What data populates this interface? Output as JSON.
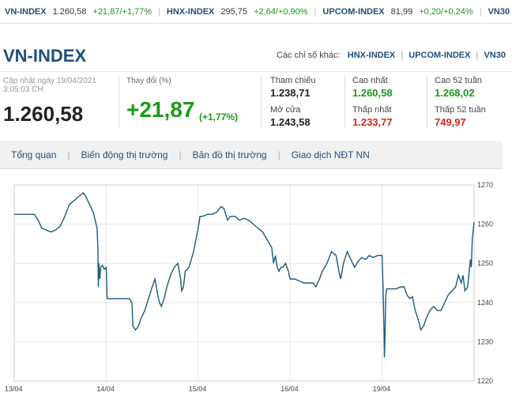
{
  "ticker": [
    {
      "symbol": "VN-INDEX",
      "value": "1.260,58",
      "change": "+21,87/+1,77%"
    },
    {
      "symbol": "HNX-INDEX",
      "value": "295,75",
      "change": "+2,64/+0,90%"
    },
    {
      "symbol": "UPCOM-INDEX",
      "value": "81,99",
      "change": "+0,20/+0,24%"
    },
    {
      "symbol": "VN30",
      "value": "",
      "change": ""
    }
  ],
  "header": {
    "title": "VN-INDEX",
    "other_label": "Các chỉ số khác:",
    "links": [
      "HNX-INDEX",
      "UPCOM-INDEX",
      "VN30"
    ]
  },
  "stats": {
    "updated_line1": "Cập nhật ngày 19/04/2021",
    "updated_line2": "3:05:03 CH",
    "price": "1.260,58",
    "change_label": "Thay đổi (%)",
    "change_value": "+21,87",
    "change_pct": "(+1,77%)",
    "ref_label": "Tham chiếu",
    "ref_value": "1.238,71",
    "open_label": "Mở cửa",
    "open_value": "1.243,58",
    "high_label": "Cao nhất",
    "high_value": "1.260,58",
    "low_label": "Thấp nhất",
    "low_value": "1.233,77",
    "high52_label": "Cao 52 tuần",
    "high52_value": "1.268,02",
    "low52_label": "Thấp 52 tuần",
    "low52_value": "749,97"
  },
  "nav": {
    "tabs": [
      "Tổng quan",
      "Biến động thị trường",
      "Bản đồ thị trường",
      "Giao dịch NĐT NN"
    ]
  },
  "colors": {
    "brand": "#1f4e79",
    "up": "#1a9a1a",
    "down": "#d9261c",
    "line": "#1e5a78"
  },
  "chart_data": {
    "type": "line",
    "categories": [
      "13/04",
      "14/04",
      "15/04",
      "16/04",
      "19/04"
    ],
    "ylim": [
      1220,
      1270
    ],
    "yticks": [
      1220,
      1230,
      1240,
      1250,
      1260,
      1270
    ],
    "series": [
      {
        "values": [
          [
            0.0,
            1262.5
          ],
          [
            0.05,
            1262.5
          ],
          [
            0.1,
            1262.5
          ],
          [
            0.15,
            1262.5
          ],
          [
            0.2,
            1262.5
          ],
          [
            0.22,
            1262.5
          ],
          [
            0.26,
            1261
          ],
          [
            0.3,
            1259
          ],
          [
            0.35,
            1258.5
          ],
          [
            0.4,
            1258
          ],
          [
            0.45,
            1258.5
          ],
          [
            0.5,
            1259.5
          ],
          [
            0.55,
            1262
          ],
          [
            0.6,
            1265
          ],
          [
            0.65,
            1266
          ],
          [
            0.7,
            1267
          ],
          [
            0.75,
            1268
          ],
          [
            0.78,
            1267
          ],
          [
            0.82,
            1265
          ],
          [
            0.86,
            1263
          ],
          [
            0.88,
            1261
          ],
          [
            0.9,
            1259
          ],
          [
            0.91,
            1254
          ],
          [
            0.915,
            1244
          ],
          [
            0.92,
            1250
          ],
          [
            0.93,
            1246
          ],
          [
            0.94,
            1249
          ],
          [
            0.96,
            1249.5
          ],
          [
            0.98,
            1248.5
          ],
          [
            1.0,
            1249
          ],
          [
            1.01,
            1241
          ],
          [
            1.05,
            1241
          ],
          [
            1.1,
            1241
          ],
          [
            1.15,
            1241
          ],
          [
            1.2,
            1241
          ],
          [
            1.25,
            1241
          ],
          [
            1.28,
            1240
          ],
          [
            1.29,
            1234
          ],
          [
            1.32,
            1233
          ],
          [
            1.35,
            1234
          ],
          [
            1.38,
            1236
          ],
          [
            1.42,
            1238
          ],
          [
            1.46,
            1241
          ],
          [
            1.5,
            1244
          ],
          [
            1.53,
            1246
          ],
          [
            1.56,
            1242
          ],
          [
            1.58,
            1240
          ],
          [
            1.6,
            1239
          ],
          [
            1.63,
            1241
          ],
          [
            1.66,
            1244
          ],
          [
            1.7,
            1247
          ],
          [
            1.74,
            1249
          ],
          [
            1.78,
            1250
          ],
          [
            1.81,
            1246
          ],
          [
            1.82,
            1243
          ],
          [
            1.84,
            1244
          ],
          [
            1.86,
            1248
          ],
          [
            1.9,
            1249
          ],
          [
            1.95,
            1253
          ],
          [
            2.0,
            1259
          ],
          [
            2.02,
            1262
          ],
          [
            2.05,
            1262
          ],
          [
            2.1,
            1262.5
          ],
          [
            2.15,
            1262.5
          ],
          [
            2.2,
            1263
          ],
          [
            2.25,
            1264.5
          ],
          [
            2.28,
            1264
          ],
          [
            2.32,
            1261
          ],
          [
            2.35,
            1262
          ],
          [
            2.4,
            1262
          ],
          [
            2.45,
            1261
          ],
          [
            2.5,
            1261.5
          ],
          [
            2.55,
            1261
          ],
          [
            2.6,
            1260
          ],
          [
            2.65,
            1259
          ],
          [
            2.7,
            1258
          ],
          [
            2.75,
            1256
          ],
          [
            2.8,
            1254
          ],
          [
            2.82,
            1250
          ],
          [
            2.84,
            1252
          ],
          [
            2.86,
            1249
          ],
          [
            2.88,
            1248
          ],
          [
            2.9,
            1249
          ],
          [
            2.92,
            1249
          ],
          [
            2.95,
            1250
          ],
          [
            2.98,
            1248
          ],
          [
            3.0,
            1246
          ],
          [
            3.02,
            1246
          ],
          [
            3.05,
            1246
          ],
          [
            3.1,
            1245.5
          ],
          [
            3.15,
            1245
          ],
          [
            3.2,
            1245
          ],
          [
            3.25,
            1245
          ],
          [
            3.28,
            1244
          ],
          [
            3.32,
            1246
          ],
          [
            3.35,
            1248
          ],
          [
            3.4,
            1250
          ],
          [
            3.45,
            1253
          ],
          [
            3.5,
            1252
          ],
          [
            3.53,
            1248
          ],
          [
            3.55,
            1246
          ],
          [
            3.58,
            1250
          ],
          [
            3.62,
            1253
          ],
          [
            3.66,
            1251
          ],
          [
            3.7,
            1249
          ],
          [
            3.74,
            1250.5
          ],
          [
            3.78,
            1251.5
          ],
          [
            3.82,
            1251
          ],
          [
            3.86,
            1252
          ],
          [
            3.9,
            1251.5
          ],
          [
            3.95,
            1252
          ],
          [
            4.0,
            1252
          ],
          [
            4.01,
            1244
          ],
          [
            4.02,
            1234
          ],
          [
            4.025,
            1226
          ],
          [
            4.03,
            1230
          ],
          [
            4.04,
            1242
          ],
          [
            4.05,
            1243.5
          ],
          [
            4.1,
            1243.5
          ],
          [
            4.15,
            1243.5
          ],
          [
            4.2,
            1244
          ],
          [
            4.24,
            1244
          ],
          [
            4.27,
            1242
          ],
          [
            4.3,
            1241
          ],
          [
            4.33,
            1241.5
          ],
          [
            4.36,
            1238
          ],
          [
            4.4,
            1235
          ],
          [
            4.42,
            1233
          ],
          [
            4.45,
            1234
          ],
          [
            4.48,
            1236
          ],
          [
            4.52,
            1238
          ],
          [
            4.56,
            1239
          ],
          [
            4.6,
            1238
          ],
          [
            4.64,
            1238
          ],
          [
            4.68,
            1240
          ],
          [
            4.72,
            1242
          ],
          [
            4.76,
            1243
          ],
          [
            4.8,
            1244
          ],
          [
            4.83,
            1247
          ],
          [
            4.86,
            1245
          ],
          [
            4.88,
            1247
          ],
          [
            4.9,
            1243
          ],
          [
            4.93,
            1244
          ],
          [
            4.96,
            1251
          ],
          [
            4.97,
            1249
          ],
          [
            4.98,
            1256
          ],
          [
            5.0,
            1260.5
          ]
        ]
      }
    ]
  }
}
